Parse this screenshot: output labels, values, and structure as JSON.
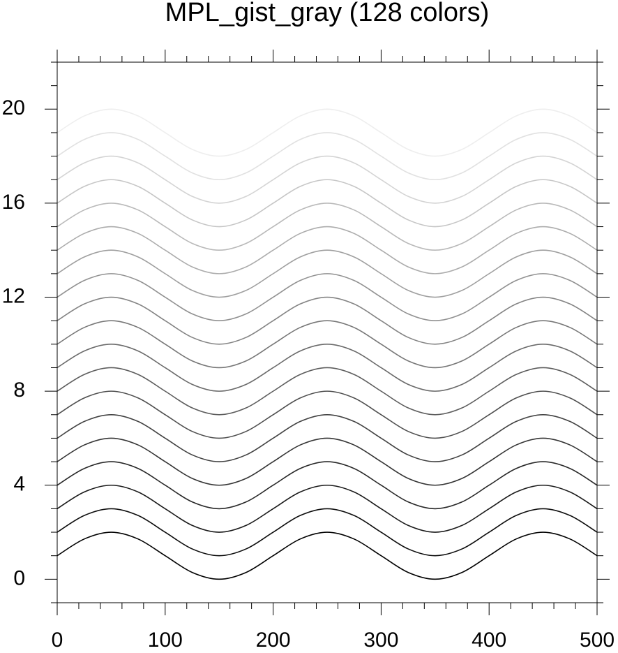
{
  "chart_data": {
    "type": "line",
    "title": "MPL_gist_gray (128 colors)",
    "x": [
      0,
      25,
      50,
      75,
      100,
      125,
      150,
      175,
      200,
      225,
      250,
      275,
      300,
      325,
      350,
      375,
      400,
      425,
      450,
      475,
      500
    ],
    "series": [
      {
        "color": "#000000",
        "values": [
          1,
          1.71,
          2,
          1.71,
          1,
          0.29,
          0,
          0.29,
          1,
          1.71,
          2,
          1.71,
          1,
          0.29,
          0,
          0.29,
          1,
          1.71,
          2,
          1.71,
          1
        ]
      },
      {
        "color": "#0d0d0d",
        "values": [
          2,
          2.71,
          3,
          2.71,
          2,
          1.29,
          1,
          1.29,
          2,
          2.71,
          3,
          2.71,
          2,
          1.29,
          1,
          1.29,
          2,
          2.71,
          3,
          2.71,
          2
        ]
      },
      {
        "color": "#1a1a1a",
        "values": [
          3,
          3.71,
          4,
          3.71,
          3,
          2.29,
          2,
          2.29,
          3,
          3.71,
          4,
          3.71,
          3,
          2.29,
          2,
          2.29,
          3,
          3.71,
          4,
          3.71,
          3
        ]
      },
      {
        "color": "#282828",
        "values": [
          4,
          4.71,
          5,
          4.71,
          4,
          3.29,
          3,
          3.29,
          4,
          4.71,
          5,
          4.71,
          4,
          3.29,
          3,
          3.29,
          4,
          4.71,
          5,
          4.71,
          4
        ]
      },
      {
        "color": "#353535",
        "values": [
          5,
          5.71,
          6,
          5.71,
          5,
          4.29,
          4,
          4.29,
          5,
          5.71,
          6,
          5.71,
          5,
          4.29,
          4,
          4.29,
          5,
          5.71,
          6,
          5.71,
          5
        ]
      },
      {
        "color": "#424242",
        "values": [
          6,
          6.71,
          7,
          6.71,
          6,
          5.29,
          5,
          5.29,
          6,
          6.71,
          7,
          6.71,
          6,
          5.29,
          5,
          5.29,
          6,
          6.71,
          7,
          6.71,
          6
        ]
      },
      {
        "color": "#4f4f4f",
        "values": [
          7,
          7.71,
          8,
          7.71,
          7,
          6.29,
          6,
          6.29,
          7,
          7.71,
          8,
          7.71,
          7,
          6.29,
          6,
          6.29,
          7,
          7.71,
          8,
          7.71,
          7
        ]
      },
      {
        "color": "#5d5d5d",
        "values": [
          8,
          8.71,
          9,
          8.71,
          8,
          7.29,
          7,
          7.29,
          8,
          8.71,
          9,
          8.71,
          8,
          7.29,
          7,
          7.29,
          8,
          8.71,
          9,
          8.71,
          8
        ]
      },
      {
        "color": "#6a6a6a",
        "values": [
          9,
          9.71,
          10,
          9.71,
          9,
          8.29,
          8,
          8.29,
          9,
          9.71,
          10,
          9.71,
          9,
          8.29,
          8,
          8.29,
          9,
          9.71,
          10,
          9.71,
          9
        ]
      },
      {
        "color": "#777777",
        "values": [
          10,
          10.71,
          11,
          10.71,
          10,
          9.29,
          9,
          9.29,
          10,
          10.71,
          11,
          10.71,
          10,
          9.29,
          9,
          9.29,
          10,
          10.71,
          11,
          10.71,
          10
        ]
      },
      {
        "color": "#848484",
        "values": [
          11,
          11.71,
          12,
          11.71,
          11,
          10.29,
          10,
          10.29,
          11,
          11.71,
          12,
          11.71,
          11,
          10.29,
          10,
          10.29,
          11,
          11.71,
          12,
          11.71,
          11
        ]
      },
      {
        "color": "#919191",
        "values": [
          12,
          12.71,
          13,
          12.71,
          12,
          11.29,
          11,
          11.29,
          12,
          12.71,
          13,
          12.71,
          12,
          11.29,
          11,
          11.29,
          12,
          12.71,
          13,
          12.71,
          12
        ]
      },
      {
        "color": "#9f9f9f",
        "values": [
          13,
          13.71,
          14,
          13.71,
          13,
          12.29,
          12,
          12.29,
          13,
          13.71,
          14,
          13.71,
          13,
          12.29,
          12,
          12.29,
          13,
          13.71,
          14,
          13.71,
          13
        ]
      },
      {
        "color": "#acacac",
        "values": [
          14,
          14.71,
          15,
          14.71,
          14,
          13.29,
          13,
          13.29,
          14,
          14.71,
          15,
          14.71,
          14,
          13.29,
          13,
          13.29,
          14,
          14.71,
          15,
          14.71,
          14
        ]
      },
      {
        "color": "#b9b9b9",
        "values": [
          15,
          15.71,
          16,
          15.71,
          15,
          14.29,
          14,
          14.29,
          15,
          15.71,
          16,
          15.71,
          15,
          14.29,
          14,
          14.29,
          15,
          15.71,
          16,
          15.71,
          15
        ]
      },
      {
        "color": "#c6c6c6",
        "values": [
          16,
          16.71,
          17,
          16.71,
          16,
          15.29,
          15,
          15.29,
          16,
          16.71,
          17,
          16.71,
          16,
          15.29,
          15,
          15.29,
          16,
          16.71,
          17,
          16.71,
          16
        ]
      },
      {
        "color": "#d4d4d4",
        "values": [
          17,
          17.71,
          18,
          17.71,
          17,
          16.29,
          16,
          16.29,
          17,
          17.71,
          18,
          17.71,
          17,
          16.29,
          16,
          16.29,
          17,
          17.71,
          18,
          17.71,
          17
        ]
      },
      {
        "color": "#e1e1e1",
        "values": [
          18,
          18.71,
          19,
          18.71,
          18,
          17.29,
          17,
          17.29,
          18,
          18.71,
          19,
          18.71,
          18,
          17.29,
          17,
          17.29,
          18,
          18.71,
          19,
          18.71,
          18
        ]
      },
      {
        "color": "#eeeeee",
        "values": [
          19,
          19.71,
          20,
          19.71,
          19,
          18.29,
          18,
          18.29,
          19,
          19.71,
          20,
          19.71,
          19,
          18.29,
          18,
          18.29,
          19,
          19.71,
          20,
          19.71,
          19
        ]
      }
    ],
    "xlim": [
      0,
      500
    ],
    "xticks": [
      0,
      100,
      200,
      300,
      400,
      500
    ],
    "ylim": [
      -1,
      22
    ],
    "yticks": [
      0,
      4,
      8,
      12,
      16,
      20
    ]
  }
}
